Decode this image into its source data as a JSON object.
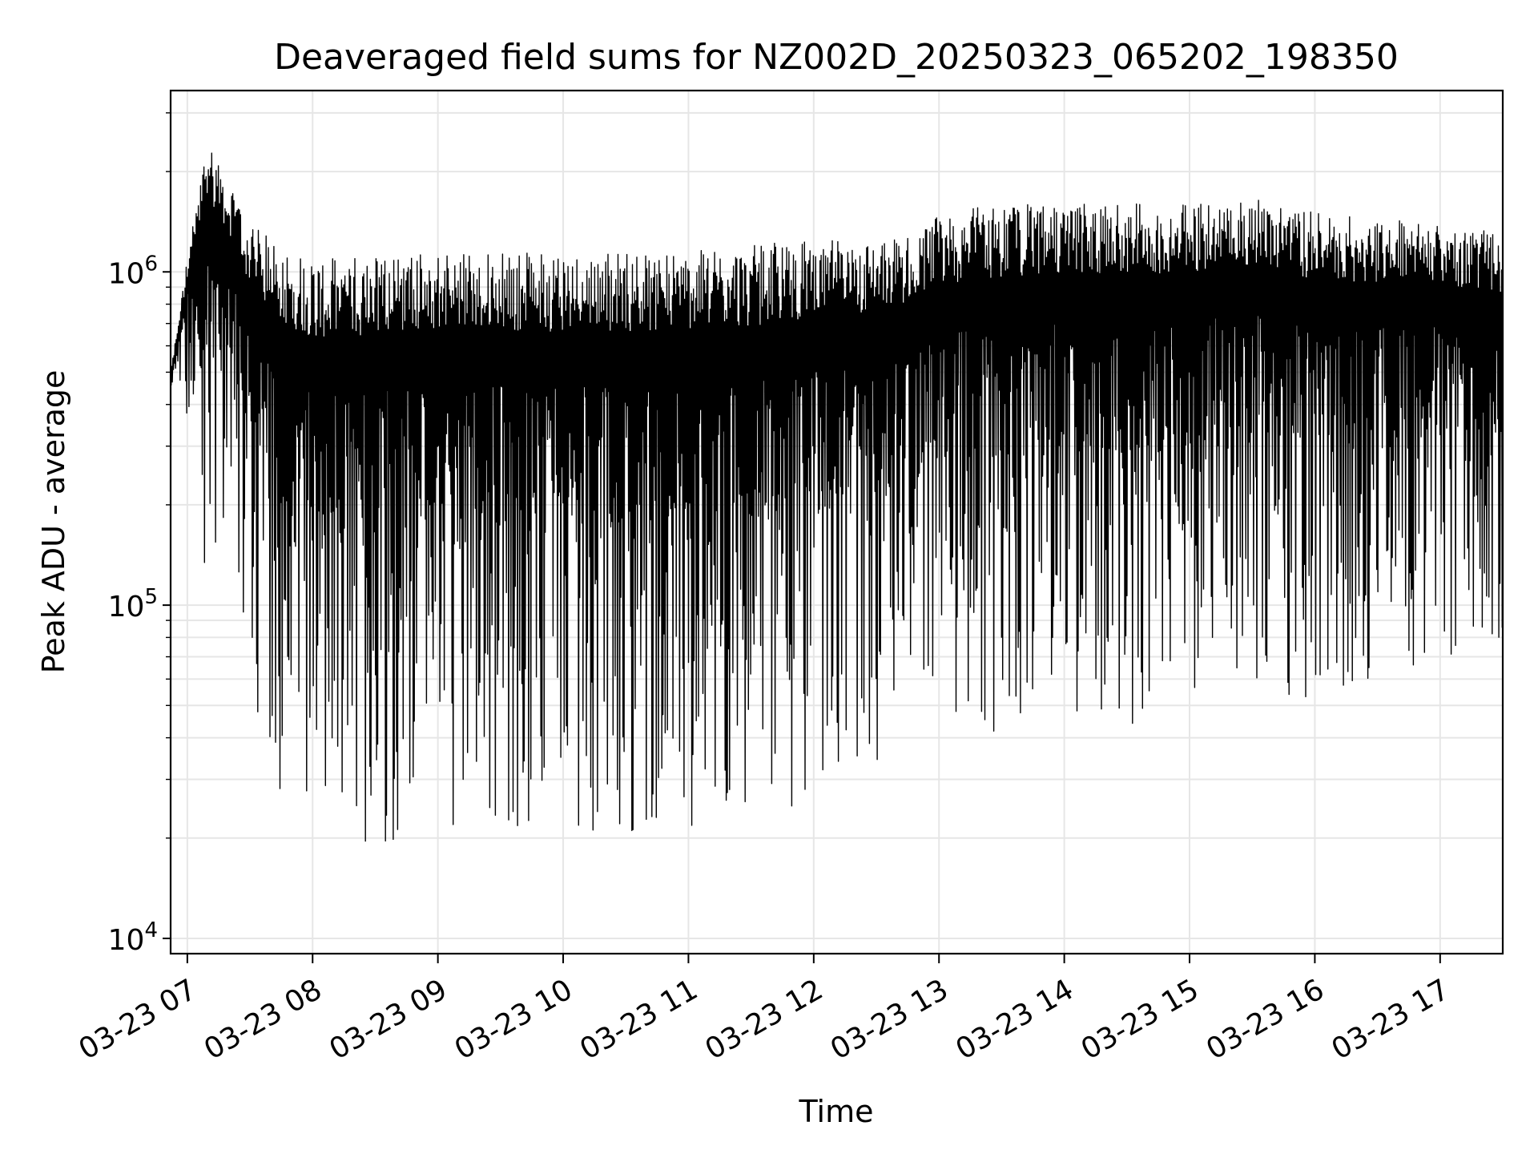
{
  "chart_data": {
    "type": "line",
    "title": "Deaveraged field sums for NZ002D_20250323_065202_198350",
    "xlabel": "Time",
    "ylabel": "Peak ADU - average",
    "yscale": "log",
    "ylim": [
      9000,
      3500000
    ],
    "xlim": [
      "03-23 06:52",
      "03-23 17:30"
    ],
    "grid": true,
    "line_color": "#000000",
    "x_ticks": [
      "03-23 07",
      "03-23 08",
      "03-23 09",
      "03-23 10",
      "03-23 11",
      "03-23 12",
      "03-23 13",
      "03-23 14",
      "03-23 15",
      "03-23 16",
      "03-23 17"
    ],
    "y_ticks": [
      {
        "base": "10",
        "exp": "4",
        "value": 10000
      },
      {
        "base": "10",
        "exp": "5",
        "value": 100000
      },
      {
        "base": "10",
        "exp": "6",
        "value": 1000000
      }
    ],
    "series": [
      {
        "x": [
          "03-23 06:52",
          "03-23 07:00",
          "03-23 07:10",
          "03-23 07:20",
          "03-23 07:30",
          "03-23 07:45",
          "03-23 08:00",
          "03-23 08:15",
          "03-23 08:30",
          "03-23 09:00",
          "03-23 09:30",
          "03-23 10:00",
          "03-23 10:30",
          "03-23 11:00",
          "03-23 11:30",
          "03-23 12:00",
          "03-23 12:30",
          "03-23 12:50",
          "03-23 13:00",
          "03-23 13:30",
          "03-23 14:00",
          "03-23 14:30",
          "03-23 15:00",
          "03-23 15:30",
          "03-23 16:00",
          "03-23 16:30",
          "03-23 17:00",
          "03-23 17:30"
        ],
        "y_high": [
          500000,
          1100000,
          2600000,
          1800000,
          1400000,
          1200000,
          1100000,
          1100000,
          1150000,
          1150000,
          1150000,
          1150000,
          1150000,
          1150000,
          1200000,
          1250000,
          1250000,
          1300000,
          1500000,
          1600000,
          1600000,
          1600000,
          1600000,
          1700000,
          1500000,
          1450000,
          1400000,
          1300000
        ],
        "y_low": [
          400000,
          350000,
          90000,
          150000,
          50000,
          20000,
          17000,
          15000,
          14000,
          18000,
          17000,
          17000,
          17000,
          17000,
          17000,
          20000,
          22000,
          30000,
          35000,
          33000,
          38000,
          36000,
          38000,
          45000,
          40000,
          50000,
          55000,
          60000
        ]
      }
    ]
  }
}
